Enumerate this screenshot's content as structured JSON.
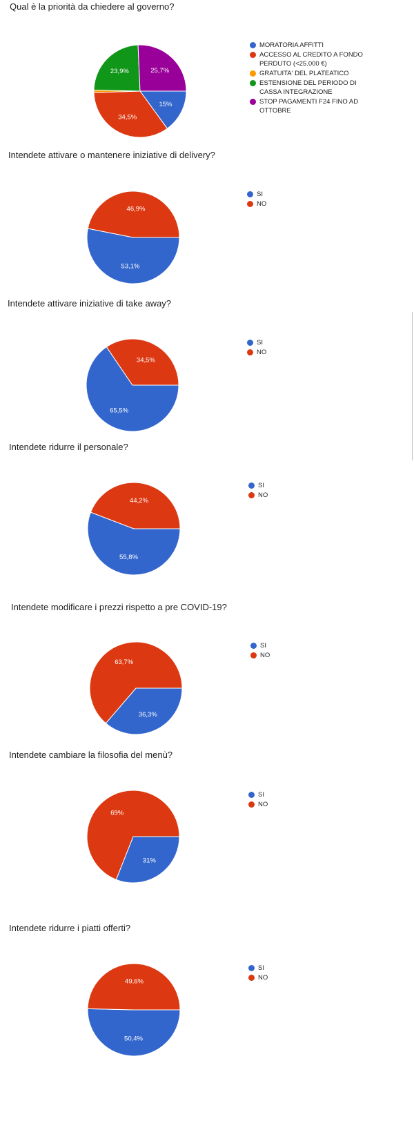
{
  "colors": {
    "blue": "#3366cc",
    "red": "#dc3912",
    "yellow": "#ff9900",
    "green": "#109618",
    "purple": "#990099"
  },
  "chart_data": [
    {
      "type": "pie",
      "title": "Qual è la priorità da chiedere al governo?",
      "legend_position": "right",
      "slices": [
        {
          "label": "MORATORIA AFFITTI",
          "value": 15,
          "display": "15%",
          "color": "#3366cc"
        },
        {
          "label": "ACCESSO AL CREDITO A FONDO PERDUTO (<25.000 €)",
          "value": 34.5,
          "display": "34,5%",
          "color": "#dc3912"
        },
        {
          "label": "GRATUITA' DEL PLATEATICO",
          "value": 0.9,
          "display": "",
          "color": "#ff9900"
        },
        {
          "label": "ESTENSIONE DEL PERIODO DI CASSA INTEGRAZIONE",
          "value": 23.9,
          "display": "23,9%",
          "color": "#109618"
        },
        {
          "label": "STOP PAGAMENTI F24 FINO AD OTTOBRE",
          "value": 25.7,
          "display": "25,7%",
          "color": "#990099"
        }
      ]
    },
    {
      "type": "pie",
      "title": "Intendete attivare o mantenere iniziative di delivery?",
      "legend_position": "right",
      "slices": [
        {
          "label": "SI",
          "value": 53.1,
          "display": "53,1%",
          "color": "#3366cc"
        },
        {
          "label": "NO",
          "value": 46.9,
          "display": "46,9%",
          "color": "#dc3912"
        }
      ]
    },
    {
      "type": "pie",
      "title": "Intendete attivare iniziative di take away?",
      "legend_position": "right",
      "slices": [
        {
          "label": "SI",
          "value": 65.5,
          "display": "65,5%",
          "color": "#3366cc"
        },
        {
          "label": "NO",
          "value": 34.5,
          "display": "34,5%",
          "color": "#dc3912"
        }
      ]
    },
    {
      "type": "pie",
      "title": "Intendete ridurre il personale?",
      "legend_position": "right",
      "slices": [
        {
          "label": "SI",
          "value": 55.8,
          "display": "55,8%",
          "color": "#3366cc"
        },
        {
          "label": "NO",
          "value": 44.2,
          "display": "44,2%",
          "color": "#dc3912"
        }
      ]
    },
    {
      "type": "pie",
      "title": "Intendete modificare i prezzi rispetto a pre COVID-19?",
      "legend_position": "right",
      "slices": [
        {
          "label": "SI",
          "value": 36.3,
          "display": "36,3%",
          "color": "#3366cc"
        },
        {
          "label": "NO",
          "value": 63.7,
          "display": "63,7%",
          "color": "#dc3912"
        }
      ]
    },
    {
      "type": "pie",
      "title": "Intendete cambiare la filosofia del menù?",
      "legend_position": "right",
      "slices": [
        {
          "label": "SI",
          "value": 31,
          "display": "31%",
          "color": "#3366cc"
        },
        {
          "label": "NO",
          "value": 69,
          "display": "69%",
          "color": "#dc3912"
        }
      ]
    },
    {
      "type": "pie",
      "title": "Intendete ridurre i piatti offerti?",
      "legend_position": "right",
      "slices": [
        {
          "label": "SI",
          "value": 50.4,
          "display": "50,4%",
          "color": "#3366cc"
        },
        {
          "label": "NO",
          "value": 49.6,
          "display": "49,6%",
          "color": "#dc3912"
        }
      ]
    }
  ]
}
